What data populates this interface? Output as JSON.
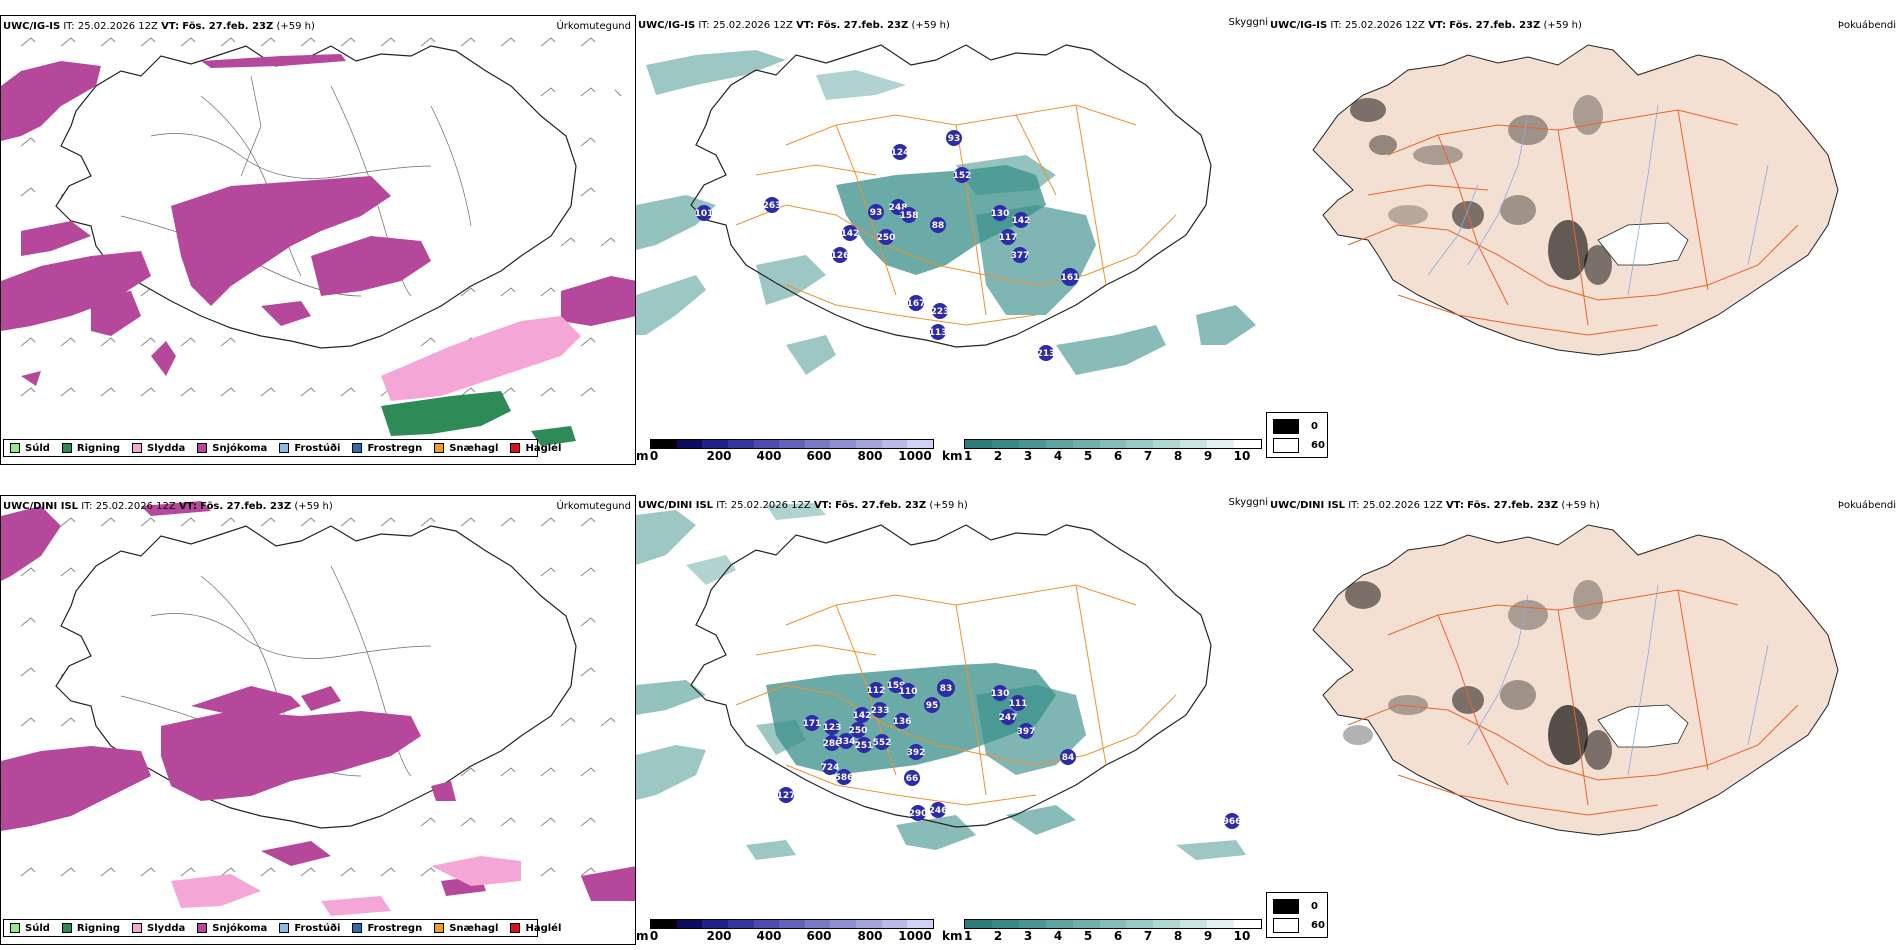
{
  "rows": [
    {
      "model": "UWC/IG-IS",
      "it_label": "IT:",
      "it_value": "25.02.2026 12Z",
      "vt_label": "VT:",
      "vt_value": "Fös. 27.feb. 23Z",
      "offset": "(+59 h)"
    },
    {
      "model": "UWC/DINI ISL",
      "it_label": "IT:",
      "it_value": "25.02.2026 12Z",
      "vt_label": "VT:",
      "vt_value": "Fös. 27.feb. 23Z",
      "offset": "(+59 h)"
    }
  ],
  "panel_titles": {
    "precip": "Úrkomutegund",
    "visibility": "Skyggni",
    "fog": "Þokuábendi"
  },
  "precip_legend": [
    {
      "label": "Súld",
      "color": "#90ee90"
    },
    {
      "label": "Rigning",
      "color": "#2e8b57"
    },
    {
      "label": "Slydda",
      "color": "#f4a6d7"
    },
    {
      "label": "Snjókoma",
      "color": "#b5489a"
    },
    {
      "label": "Frostúði",
      "color": "#87bfe8"
    },
    {
      "label": "Frostregn",
      "color": "#2b6cb0"
    },
    {
      "label": "Snæhagl",
      "color": "#f0a020"
    },
    {
      "label": "Haglél",
      "color": "#e01010"
    }
  ],
  "ceiling_scale": {
    "unit": "m",
    "ticks": [
      "0",
      "200",
      "400",
      "600",
      "800",
      "1000"
    ],
    "colors": [
      "#000000",
      "#0b0b60",
      "#1f1f8c",
      "#3535a0",
      "#4b4bb0",
      "#6262bc",
      "#7878c8",
      "#8e8ed2",
      "#a4a4dc",
      "#babae6",
      "#d0d0f0"
    ]
  },
  "visibility_scale": {
    "unit": "km",
    "ticks": [
      "1",
      "2",
      "3",
      "4",
      "5",
      "6",
      "7",
      "8",
      "9",
      "10"
    ],
    "colors": [
      "#2a7d7a",
      "#3a8a86",
      "#4a9692",
      "#5da39f",
      "#70b0ac",
      "#85bdb9",
      "#9acac6",
      "#b0d7d4",
      "#c8e5e2",
      "#e3f2f0",
      "#ffffff"
    ]
  },
  "fog_scale": {
    "top_label": "0",
    "bottom_label": "60",
    "top_color": "#000000",
    "bottom_color": "#ffffff"
  },
  "colors": {
    "land_fog": "#f4e0d2",
    "roads": "#e8642c",
    "rivers": "#8aa8e8",
    "vis_roads": "#f09030",
    "ceiling_marker": "#2c2ca8",
    "vis_shade": "#3a8f8a",
    "snow": "#b5489a",
    "sleet": "#f4a6d7",
    "rain": "#2e8b57"
  },
  "ceiling_markers": [
    {
      "row": 0,
      "items": [
        "101",
        "263",
        "248",
        "158",
        "93",
        "88",
        "250",
        "142",
        "126",
        "130",
        "142",
        "117",
        "377",
        "161",
        "167",
        "223",
        "113",
        "213",
        "124",
        "152",
        "93"
      ]
    },
    {
      "row": 1,
      "items": [
        "112",
        "159",
        "110",
        "83",
        "95",
        "130",
        "111",
        "247",
        "397",
        "84",
        "233",
        "142",
        "136",
        "250",
        "123",
        "171",
        "280",
        "334",
        "251",
        "552",
        "392",
        "724",
        "586",
        "66",
        "290",
        "246",
        "966",
        "127"
      ]
    }
  ]
}
